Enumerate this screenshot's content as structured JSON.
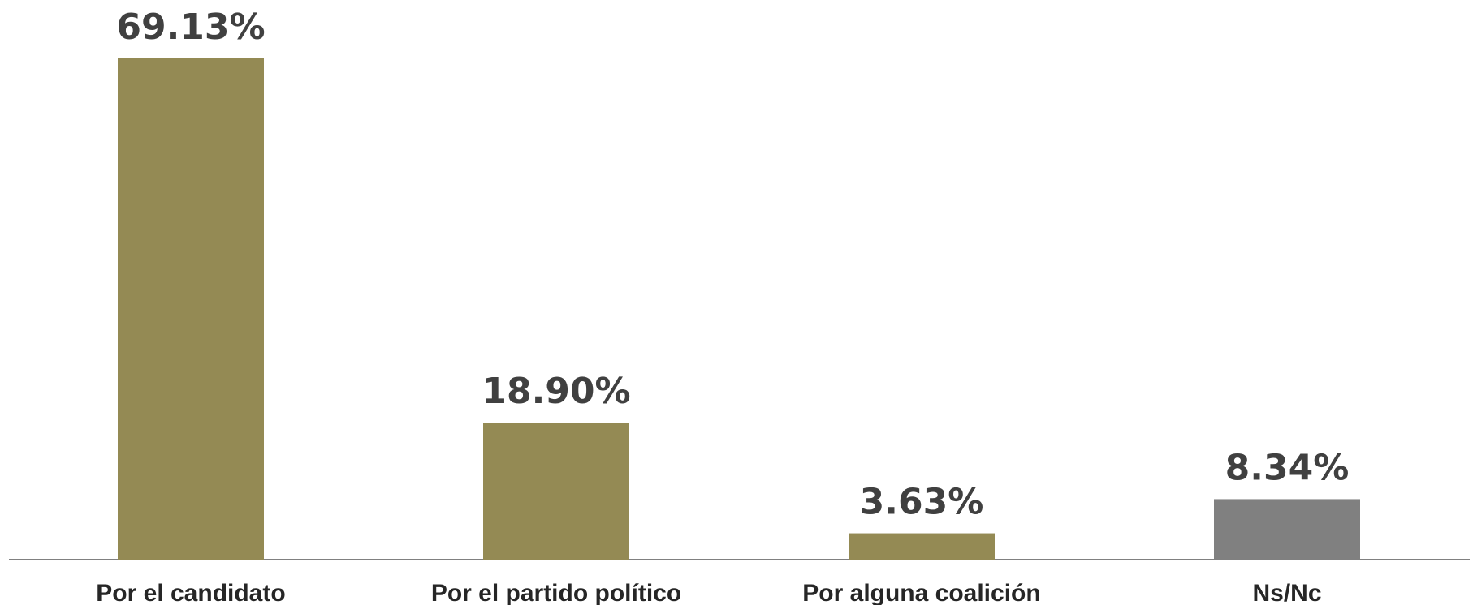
{
  "chart_data": {
    "type": "bar",
    "title": "",
    "xlabel": "",
    "ylabel": "",
    "categories": [
      "Por el candidato",
      "Por el partido político",
      "Por alguna coalición",
      "Ns/Nc"
    ],
    "values": [
      69.13,
      18.9,
      3.63,
      8.34
    ],
    "value_labels": [
      "69.13%",
      "18.90%",
      "3.63%",
      "8.34%"
    ],
    "ylim": [
      0,
      69.13
    ],
    "grid": false,
    "legend": "none",
    "colors": {
      "bars": [
        "#948A54",
        "#948A54",
        "#948A54",
        "#808080"
      ],
      "value_text": "#404040",
      "category_text": "#262626",
      "axis": "#808080"
    }
  }
}
